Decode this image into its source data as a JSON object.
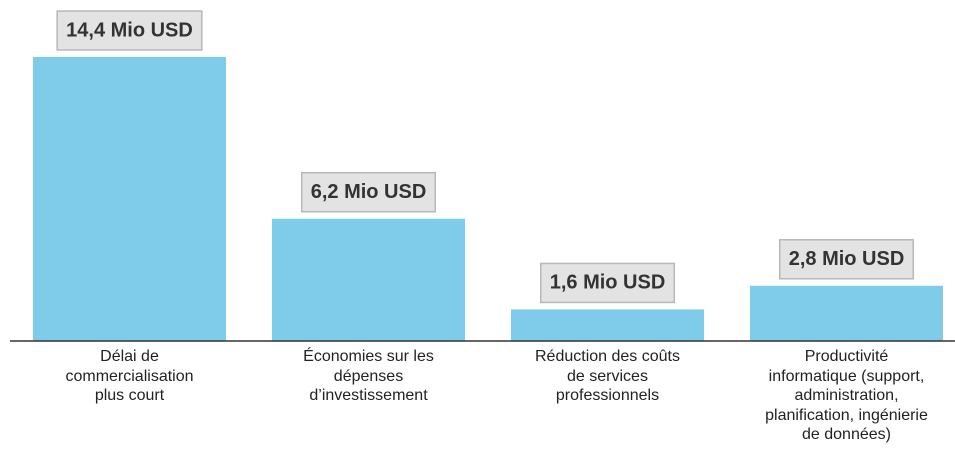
{
  "chart_data": {
    "type": "bar",
    "categories": [
      "Délai de\ncommercialisation\nplus court",
      "Économies sur les\ndépenses\nd’investissement",
      "Réduction des coûts\nde services\nprofessionnels",
      "Productivité\ninformatique (support,\nadministration,\nplanification, ingénierie\nde données)"
    ],
    "values": [
      14.4,
      6.2,
      1.6,
      2.8
    ],
    "value_labels": [
      "14,4 Mio USD",
      "6,2 Mio USD",
      "1,6 Mio USD",
      "2,8 Mio USD"
    ],
    "color": "#7fcbea"
  }
}
